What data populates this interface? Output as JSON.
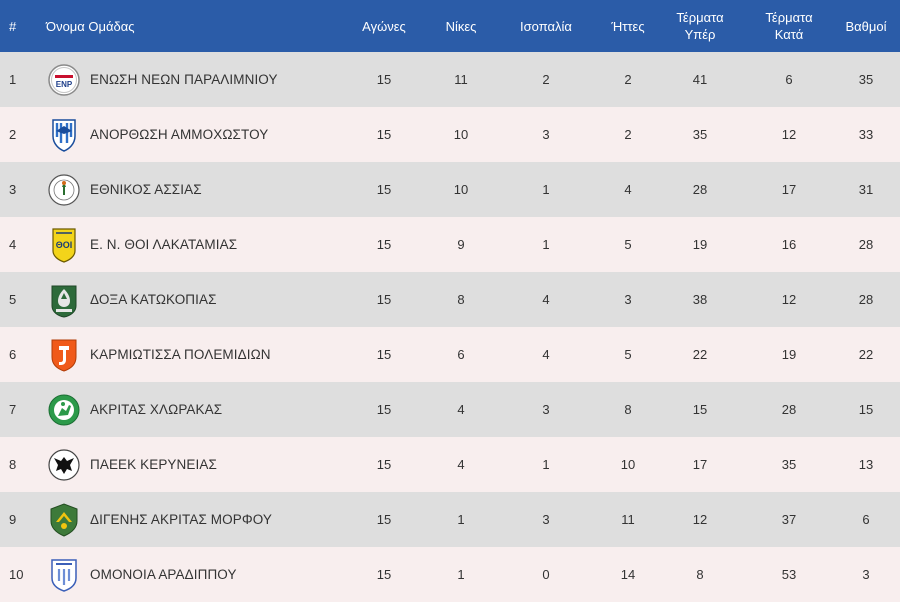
{
  "table": {
    "headers": {
      "pos": "#",
      "team": "Όνομα Ομάδας",
      "played": "Αγώνες",
      "wins": "Νίκες",
      "draws": "Ισοπαλία",
      "losses": "Ήττες",
      "gf_line1": "Τέρματα",
      "gf_line2": "Υπέρ",
      "ga_line1": "Τέρματα",
      "ga_line2": "Κατά",
      "points": "Βαθμοί"
    },
    "rows": [
      {
        "pos": "1",
        "team": "ΕΝΩΣΗ ΝΕΩΝ ΠΑΡΑΛΙΜΝΙΟΥ",
        "played": "15",
        "wins": "11",
        "draws": "2",
        "losses": "2",
        "gf": "41",
        "ga": "6",
        "points": "35",
        "crest_icon": "enp-crest-icon"
      },
      {
        "pos": "2",
        "team": "ΑΝΟΡΘΩΣΗ ΑΜΜΟΧΩΣΤΟΥ",
        "played": "15",
        "wins": "10",
        "draws": "3",
        "losses": "2",
        "gf": "35",
        "ga": "12",
        "points": "33",
        "crest_icon": "anorthosis-crest-icon"
      },
      {
        "pos": "3",
        "team": "ΕΘΝΙΚΟΣ ΑΣΣΙΑΣ",
        "played": "15",
        "wins": "10",
        "draws": "1",
        "losses": "4",
        "gf": "28",
        "ga": "17",
        "points": "31",
        "crest_icon": "ethnikos-crest-icon"
      },
      {
        "pos": "4",
        "team": "Ε. Ν. ΘΟΙ ΛΑΚΑΤΑΜΙΑΣ",
        "played": "15",
        "wins": "9",
        "draws": "1",
        "losses": "5",
        "gf": "19",
        "ga": "16",
        "points": "28",
        "crest_icon": "thoi-crest-icon"
      },
      {
        "pos": "5",
        "team": "ΔΟΞΑ ΚΑΤΩΚΟΠΙΑΣ",
        "played": "15",
        "wins": "8",
        "draws": "4",
        "losses": "3",
        "gf": "38",
        "ga": "12",
        "points": "28",
        "crest_icon": "doxa-crest-icon"
      },
      {
        "pos": "6",
        "team": "ΚΑΡΜΙΩΤΙΣΣΑ ΠΟΛΕΜΙΔΙΩΝ",
        "played": "15",
        "wins": "6",
        "draws": "4",
        "losses": "5",
        "gf": "22",
        "ga": "19",
        "points": "22",
        "crest_icon": "karmiotissa-crest-icon"
      },
      {
        "pos": "7",
        "team": "ΑΚΡΙΤΑΣ ΧΛΩΡΑΚΑΣ",
        "played": "15",
        "wins": "4",
        "draws": "3",
        "losses": "8",
        "gf": "15",
        "ga": "28",
        "points": "15",
        "crest_icon": "akritas-crest-icon"
      },
      {
        "pos": "8",
        "team": "ΠΑΕΕΚ ΚΕΡΥΝΕΙΑΣ",
        "played": "15",
        "wins": "4",
        "draws": "1",
        "losses": "10",
        "gf": "17",
        "ga": "35",
        "points": "13",
        "crest_icon": "paeek-crest-icon"
      },
      {
        "pos": "9",
        "team": "ΔΙΓΕΝΗΣ ΑΚΡΙΤΑΣ ΜΟΡΦΟΥ",
        "played": "15",
        "wins": "1",
        "draws": "3",
        "losses": "11",
        "gf": "12",
        "ga": "37",
        "points": "6",
        "crest_icon": "digenis-crest-icon"
      },
      {
        "pos": "10",
        "team": "ΟΜΟΝΟΙΑ ΑΡΑΔΙΠΠΟΥ",
        "played": "15",
        "wins": "1",
        "draws": "0",
        "losses": "14",
        "gf": "8",
        "ga": "53",
        "points": "3",
        "crest_icon": "omonoia-crest-icon"
      }
    ]
  },
  "colors": {
    "header_bg": "#2b5ca8",
    "row_odd": "#dedede",
    "row_even": "#f8eeee"
  }
}
